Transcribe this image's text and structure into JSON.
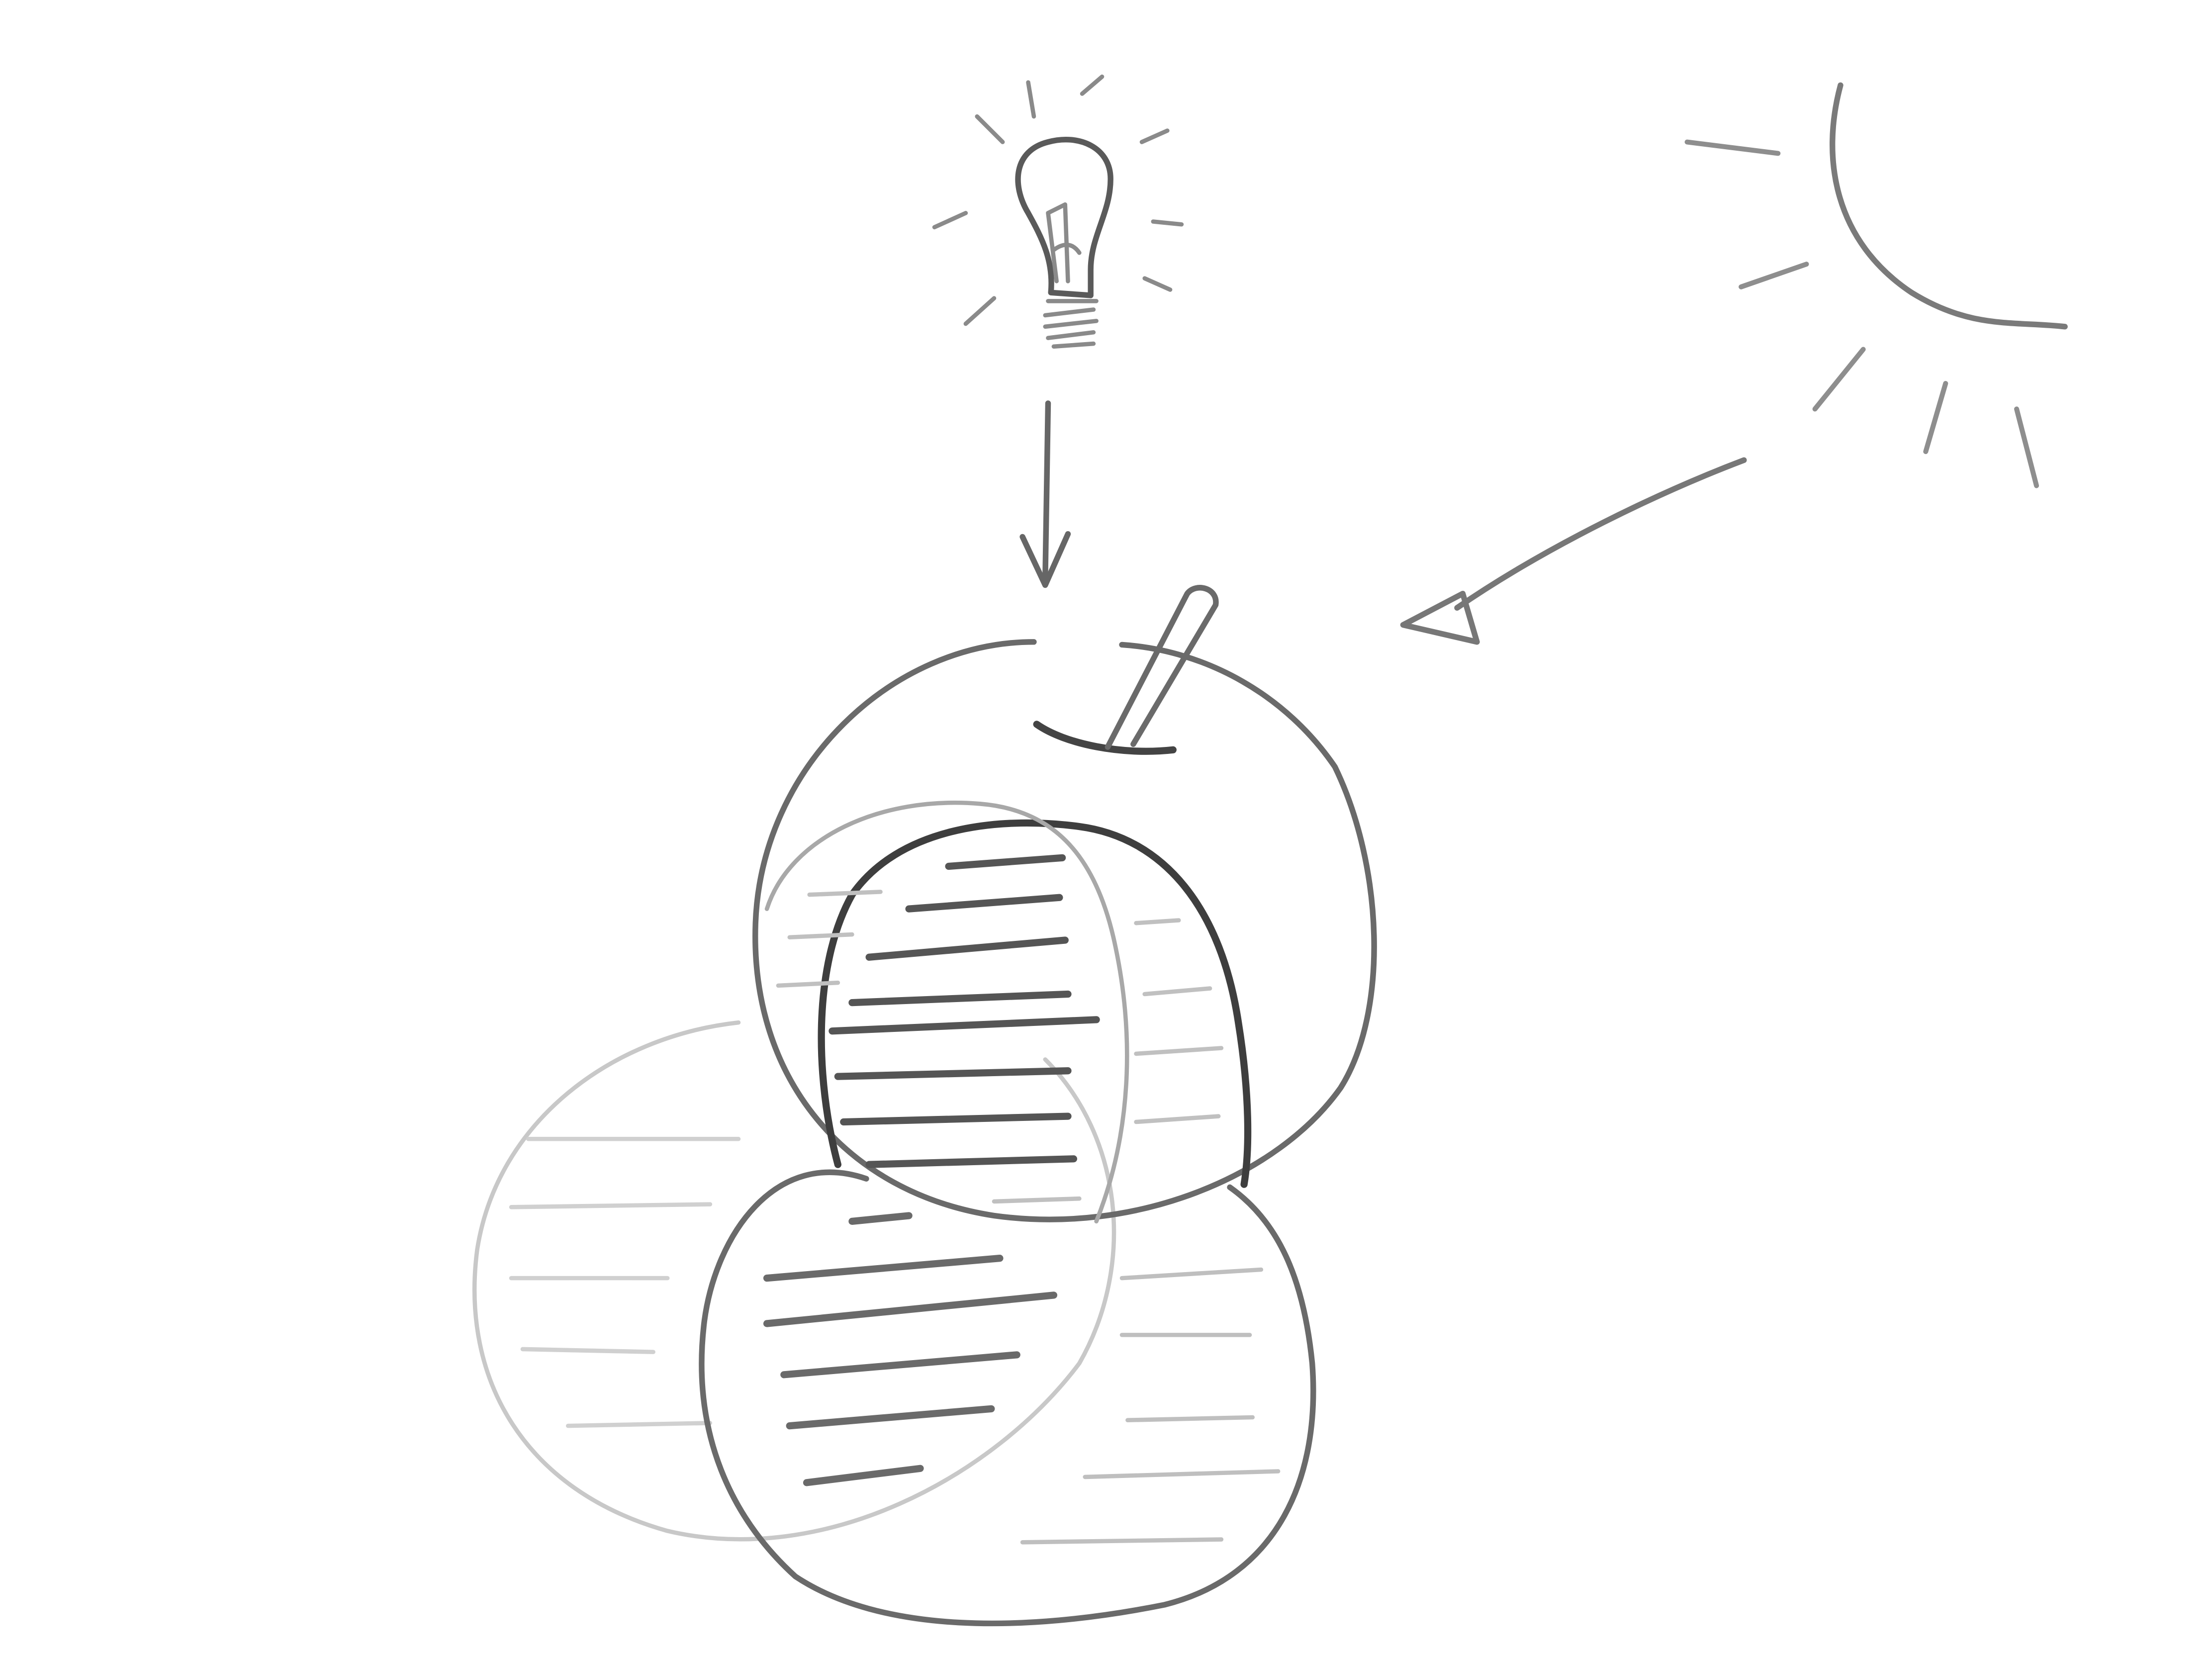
{
  "diagram": {
    "subject": "apple-shadow-sketch",
    "colors": {
      "paper": "#ffffff",
      "outline_dark": "#4a4a4a",
      "outline_mid": "#6e6e6e",
      "outline_light": "#9a9a9a",
      "outline_faint": "#c4c4c4",
      "hatch_dark": "#5a5a5a",
      "hatch_light": "#bdbdbd"
    },
    "elements": [
      {
        "name": "light-bulb-icon",
        "kind": "light-source"
      },
      {
        "name": "sun-icon",
        "kind": "light-source"
      },
      {
        "name": "down-arrow",
        "kind": "light-direction"
      },
      {
        "name": "diagonal-arrow",
        "kind": "light-direction"
      },
      {
        "name": "apple",
        "kind": "object"
      },
      {
        "name": "apple-stem",
        "kind": "object-detail"
      },
      {
        "name": "core-shadow",
        "kind": "shading"
      },
      {
        "name": "cast-shadow-bulb",
        "kind": "shading"
      },
      {
        "name": "cast-shadow-sun",
        "kind": "shading"
      }
    ]
  }
}
